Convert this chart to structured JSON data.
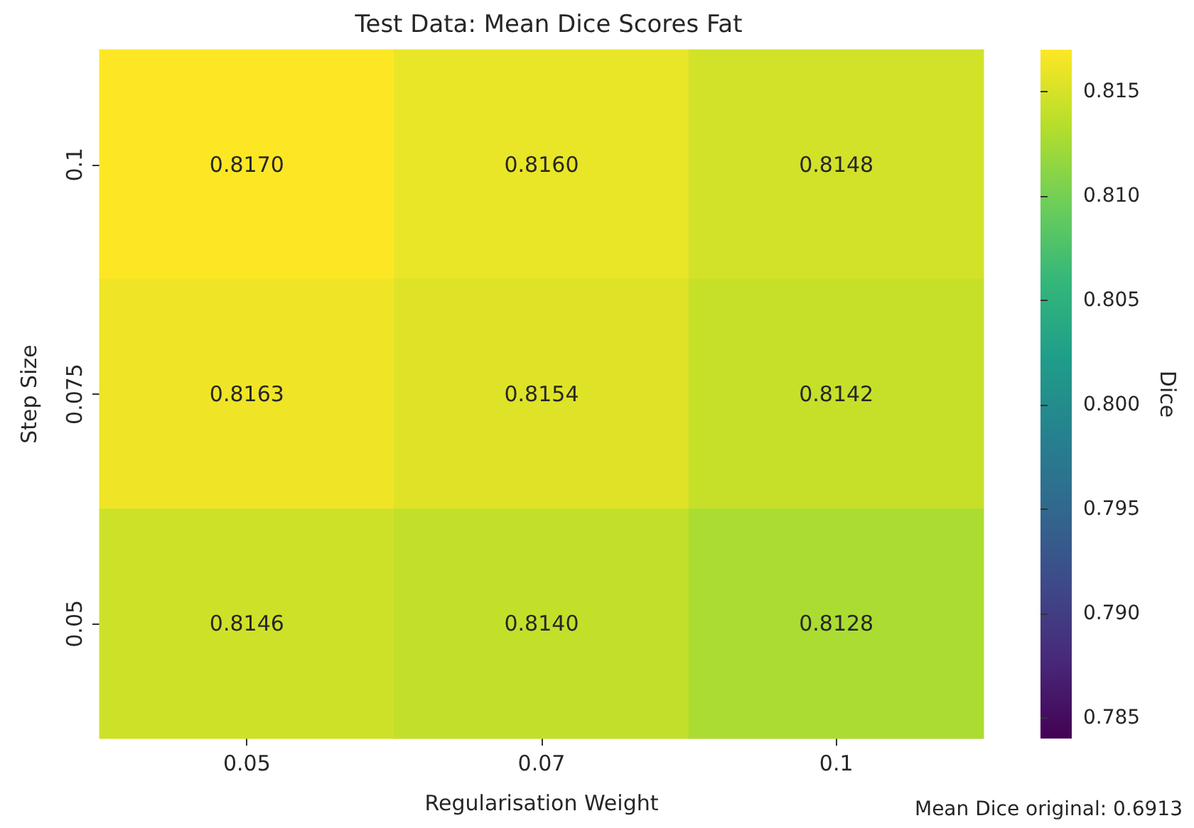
{
  "chart_data": {
    "type": "heatmap",
    "title": "Test Data: Mean Dice Scores Fat",
    "xlabel": "Regularisation Weight",
    "ylabel": "Step Size",
    "clabel": "Dice",
    "categories": [
      "0.05",
      "0.07",
      "0.1"
    ],
    "y_categories": [
      "0.1",
      "0.075",
      "0.05"
    ],
    "cells": [
      [
        0.817,
        0.816,
        0.8148
      ],
      [
        0.8163,
        0.8154,
        0.8142
      ],
      [
        0.8146,
        0.814,
        0.8128
      ]
    ],
    "cell_labels": [
      [
        "0.8170",
        "0.8160",
        "0.8148"
      ],
      [
        "0.8163",
        "0.8154",
        "0.8142"
      ],
      [
        "0.8146",
        "0.8140",
        "0.8128"
      ]
    ],
    "clim": [
      0.784,
      0.817
    ],
    "cticks": [
      0.785,
      {
        "value": 0.79,
        "label": "0.790"
      },
      0.795,
      {
        "value": 0.8,
        "label": "0.800"
      },
      0.805,
      {
        "value": 0.81,
        "label": "0.810"
      },
      0.815
    ],
    "annotations": [
      "Mean Dice original: 0.6913"
    ]
  }
}
